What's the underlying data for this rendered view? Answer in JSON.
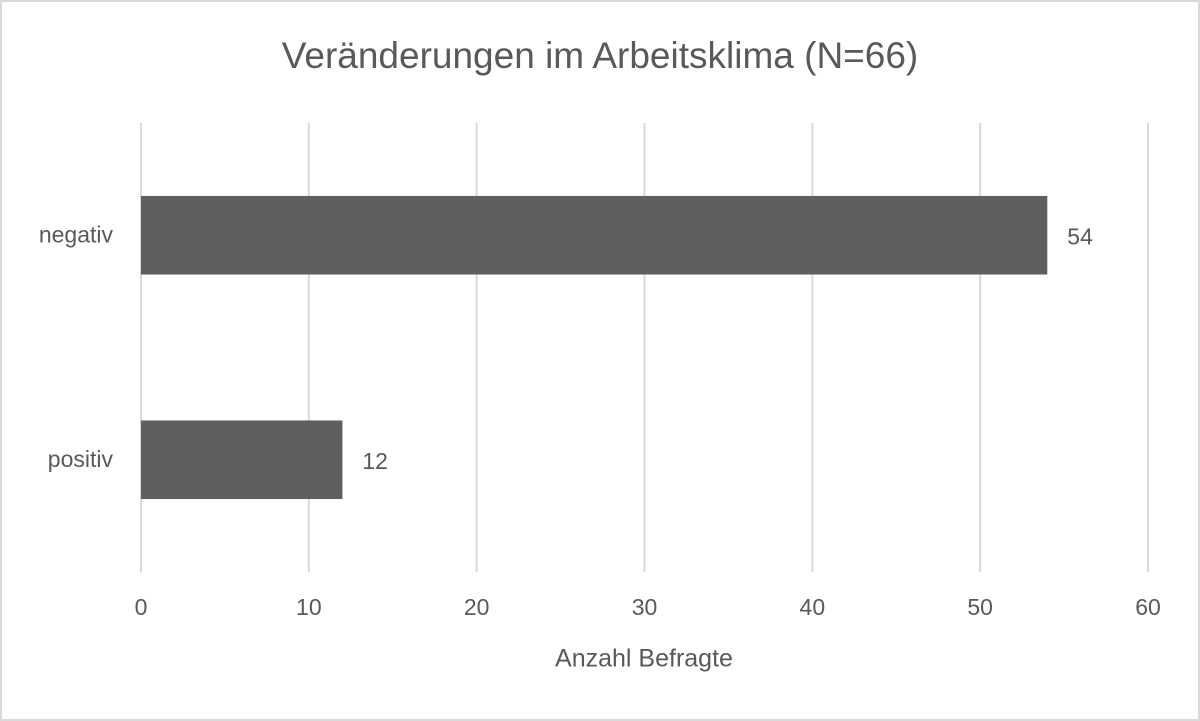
{
  "chart_data": {
    "type": "bar",
    "orientation": "horizontal",
    "title": "Veränderungen im Arbeitsklima (N=66)",
    "x_label": "Anzahl Befragte",
    "categories": [
      "negativ",
      "positiv"
    ],
    "values": [
      54,
      12
    ],
    "color": "#5f5f5f",
    "xlim": [
      0,
      60
    ],
    "xticks": [
      0,
      10,
      20,
      30,
      40,
      50,
      60
    ],
    "grid": true
  }
}
